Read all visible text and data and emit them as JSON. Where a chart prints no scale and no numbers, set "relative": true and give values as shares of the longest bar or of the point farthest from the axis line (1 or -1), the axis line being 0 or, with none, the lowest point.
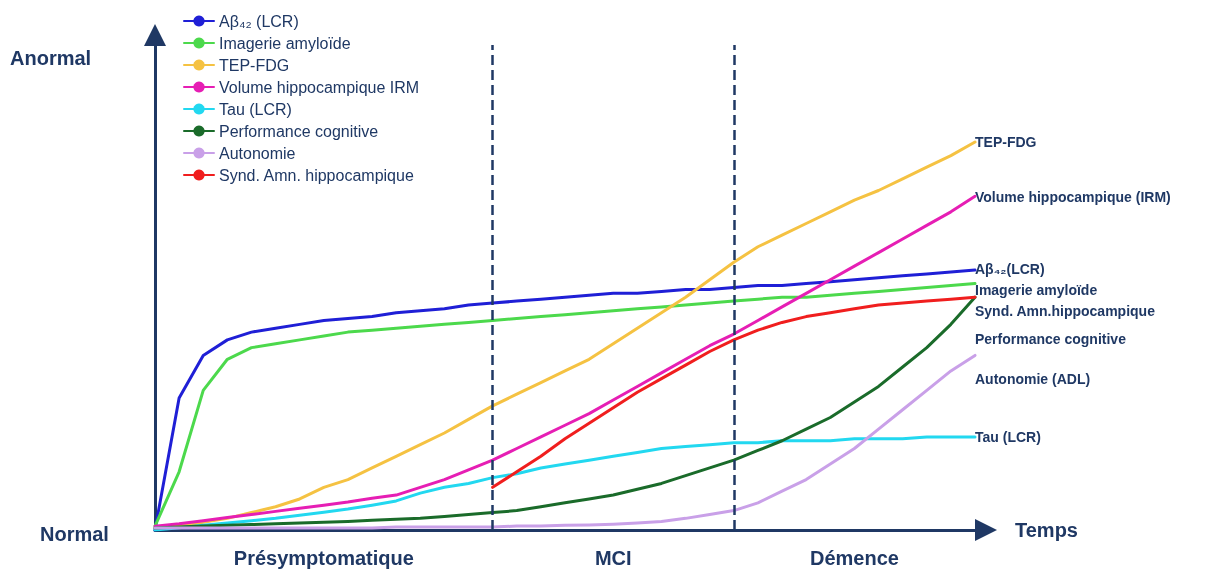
{
  "chart_data": {
    "type": "line",
    "relative": true,
    "xlabel": "Temps",
    "legend": "top left",
    "marker": "none",
    "line_style": "solid",
    "grid": false,
    "categories": [
      null,
      null,
      null,
      null,
      null,
      null,
      null,
      null,
      null,
      null,
      null,
      null,
      null,
      null,
      null,
      null,
      null,
      null,
      null,
      null,
      null,
      null,
      null,
      null,
      null,
      null,
      null,
      null,
      null,
      null,
      null,
      null,
      null,
      null,
      null
    ],
    "series": [
      {
        "name": "Aβ₄₂ (LCR)",
        "color": "#1f1fd6",
        "values": [
          0,
          0.34,
          0.45,
          0.49,
          0.51,
          0.52,
          0.53,
          0.54,
          0.545,
          0.55,
          0.56,
          0.565,
          0.57,
          0.58,
          0.585,
          0.59,
          0.595,
          0.6,
          0.605,
          0.61,
          0.61,
          0.615,
          0.62,
          0.62,
          0.625,
          0.63,
          0.63,
          0.635,
          0.64,
          0.645,
          0.65,
          0.655,
          0.66,
          0.665,
          0.67
        ]
      },
      {
        "name": "Imagerie amyloïde",
        "color": "#4cd94c",
        "values": [
          0.01,
          0.15,
          0.36,
          0.44,
          0.47,
          0.48,
          0.49,
          0.5,
          0.51,
          0.515,
          0.52,
          0.525,
          0.53,
          0.535,
          0.54,
          0.545,
          0.55,
          0.555,
          0.56,
          0.565,
          0.57,
          0.575,
          0.58,
          0.585,
          0.59,
          0.595,
          0.6,
          0.6,
          0.605,
          0.61,
          0.615,
          0.62,
          0.625,
          0.63,
          0.635
        ]
      },
      {
        "name": "TEP-FDG",
        "color": "#f5c242",
        "values": [
          0.005,
          0.01,
          0.02,
          0.03,
          0.045,
          0.06,
          0.08,
          0.11,
          0.13,
          0.16,
          0.19,
          0.22,
          0.25,
          0.285,
          0.32,
          0.35,
          0.38,
          0.41,
          0.44,
          0.48,
          0.52,
          0.56,
          0.6,
          0.645,
          0.69,
          0.73,
          0.76,
          0.79,
          0.82,
          0.85,
          0.875,
          0.905,
          0.935,
          0.965,
          1
        ]
      },
      {
        "name": "Volume hippocampique IRM",
        "color": "#e61eb4",
        "values": [
          0.01,
          0.016,
          0.024,
          0.032,
          0.04,
          0.048,
          0.056,
          0.064,
          0.072,
          0.082,
          0.09,
          0.11,
          0.13,
          0.155,
          0.18,
          0.21,
          0.24,
          0.27,
          0.3,
          0.335,
          0.37,
          0.405,
          0.44,
          0.475,
          0.505,
          0.54,
          0.575,
          0.61,
          0.645,
          0.68,
          0.715,
          0.75,
          0.785,
          0.82,
          0.86
        ]
      },
      {
        "name": "Tau (LCR)",
        "color": "#22d8f0",
        "values": [
          0,
          0.006,
          0.012,
          0.018,
          0.024,
          0.03,
          0.038,
          0.046,
          0.054,
          0.064,
          0.075,
          0.095,
          0.11,
          0.12,
          0.135,
          0.145,
          0.16,
          0.17,
          0.18,
          0.19,
          0.2,
          0.21,
          0.215,
          0.22,
          0.225,
          0.225,
          0.23,
          0.23,
          0.23,
          0.235,
          0.235,
          0.235,
          0.24,
          0.24,
          0.24
        ]
      },
      {
        "name": "Performance cognitive",
        "color": "#1a6b2a",
        "values": [
          0.005,
          0.008,
          0.01,
          0.012,
          0.014,
          0.016,
          0.018,
          0.02,
          0.022,
          0.025,
          0.028,
          0.03,
          0.035,
          0.04,
          0.045,
          0.05,
          0.06,
          0.07,
          0.08,
          0.09,
          0.105,
          0.12,
          0.14,
          0.16,
          0.18,
          0.205,
          0.23,
          0.26,
          0.29,
          0.33,
          0.37,
          0.42,
          0.47,
          0.53,
          0.6
        ]
      },
      {
        "name": "Autonomie",
        "color": "#c9a0e8",
        "values": [
          0.005,
          0.005,
          0.005,
          0.005,
          0.005,
          0.005,
          0.005,
          0.005,
          0.005,
          0.005,
          0.008,
          0.008,
          0.008,
          0.008,
          0.008,
          0.01,
          0.01,
          0.012,
          0.013,
          0.015,
          0.018,
          0.022,
          0.03,
          0.04,
          0.05,
          0.07,
          0.1,
          0.13,
          0.17,
          0.21,
          0.26,
          0.31,
          0.36,
          0.41,
          0.45
        ]
      },
      {
        "name": "Synd. Amn. hippocampique",
        "color": "#f01e1e",
        "values": [
          null,
          null,
          null,
          null,
          null,
          null,
          null,
          null,
          null,
          null,
          null,
          null,
          null,
          null,
          0.11,
          0.15,
          0.19,
          0.235,
          0.275,
          0.315,
          0.355,
          0.39,
          0.425,
          0.46,
          0.49,
          0.515,
          0.535,
          0.55,
          0.56,
          0.57,
          0.58,
          0.585,
          0.59,
          0.595,
          0.6
        ]
      }
    ],
    "annotations": [
      "Normal",
      "Anormal",
      "Présymptomatique",
      "MCI",
      "Démence",
      "TEP-FDG",
      "Volume hippocampique (IRM)",
      "Aβ₄₂(LCR)",
      "Imagerie amyloïde",
      "Synd. Amn.hippocampique",
      "Performance cognitive",
      "Autonomie (ADL)",
      "Tau (LCR)"
    ]
  }
}
